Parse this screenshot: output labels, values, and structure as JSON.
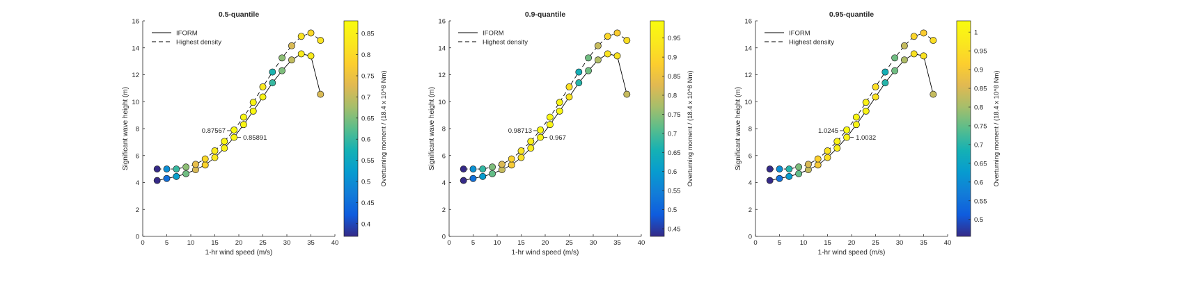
{
  "chart_data": [
    {
      "type": "scatter",
      "title": "0.5-quantile",
      "xlabel": "1-hr wind speed (m/s)",
      "ylabel": "Significant wave height (m)",
      "colorbar_label": "Overturning moment / (18.4 x 10^8 Nm)",
      "colorbar_ticks": [
        0.4,
        0.45,
        0.5,
        0.55,
        0.6,
        0.65,
        0.7,
        0.75,
        0.8,
        0.85
      ],
      "colorbar_range": [
        0.37,
        0.88
      ],
      "xlim": [
        0,
        40
      ],
      "ylim": [
        0,
        16
      ],
      "xticks": [
        0,
        5,
        10,
        15,
        20,
        25,
        30,
        35,
        40
      ],
      "yticks": [
        0,
        2,
        4,
        6,
        8,
        10,
        12,
        14,
        16
      ],
      "grid": false,
      "legend_position": "top-left",
      "series": [
        {
          "name": "IFORM",
          "style": "solid",
          "x": [
            3,
            5,
            7,
            9,
            11,
            13,
            15,
            17,
            19,
            21,
            23,
            25,
            27,
            29,
            31,
            33,
            35,
            37
          ],
          "y": [
            4.15,
            4.3,
            4.45,
            4.65,
            4.95,
            5.3,
            5.85,
            6.55,
            7.35,
            8.3,
            9.3,
            10.35,
            11.4,
            12.3,
            13.1,
            13.55,
            13.4,
            10.55
          ],
          "c": [
            0.37,
            0.45,
            0.53,
            0.64,
            0.72,
            0.79,
            0.83,
            0.855,
            0.8589,
            0.865,
            0.87,
            0.86,
            0.6,
            0.65,
            0.7,
            0.84,
            0.84,
            0.72
          ]
        },
        {
          "name": "Highest density",
          "style": "dashed",
          "x": [
            3,
            5,
            7,
            9,
            11,
            13,
            15,
            17,
            19,
            21,
            23,
            25,
            27,
            29,
            31,
            33,
            35,
            37
          ],
          "y": [
            5.0,
            5.0,
            5.0,
            5.15,
            5.35,
            5.75,
            6.35,
            7.05,
            7.9,
            8.85,
            9.95,
            11.1,
            12.2,
            13.25,
            14.15,
            14.85,
            15.1,
            14.55
          ],
          "c": [
            0.37,
            0.5,
            0.6,
            0.66,
            0.74,
            0.8,
            0.84,
            0.86,
            0.8757,
            0.87,
            0.86,
            0.83,
            0.58,
            0.66,
            0.72,
            0.82,
            0.8,
            0.82
          ]
        }
      ],
      "annotations": [
        {
          "text": "0.87567",
          "x": 19,
          "y": 7.9
        },
        {
          "text": "0.85891",
          "x": 19,
          "y": 7.35
        }
      ]
    },
    {
      "type": "scatter",
      "title": "0.9-quantile",
      "xlabel": "1-hr wind speed (m/s)",
      "ylabel": "Significant wave height (m)",
      "colorbar_label": "Overturning moment / (18.4 x 10^8 Nm)",
      "colorbar_ticks": [
        0.45,
        0.5,
        0.55,
        0.6,
        0.65,
        0.7,
        0.75,
        0.8,
        0.85,
        0.9,
        0.95
      ],
      "colorbar_range": [
        0.43,
        0.995
      ],
      "xlim": [
        0,
        40
      ],
      "ylim": [
        0,
        16
      ],
      "xticks": [
        0,
        5,
        10,
        15,
        20,
        25,
        30,
        35,
        40
      ],
      "yticks": [
        0,
        2,
        4,
        6,
        8,
        10,
        12,
        14,
        16
      ],
      "grid": false,
      "legend_position": "top-left",
      "series": [
        {
          "name": "IFORM",
          "style": "solid",
          "x": [
            3,
            5,
            7,
            9,
            11,
            13,
            15,
            17,
            19,
            21,
            23,
            25,
            27,
            29,
            31,
            33,
            35,
            37
          ],
          "y": [
            4.15,
            4.3,
            4.45,
            4.65,
            4.95,
            5.3,
            5.85,
            6.55,
            7.35,
            8.3,
            9.3,
            10.35,
            11.4,
            12.3,
            13.1,
            13.55,
            13.4,
            10.55
          ],
          "c": [
            0.43,
            0.52,
            0.6,
            0.72,
            0.8,
            0.87,
            0.92,
            0.95,
            0.967,
            0.975,
            0.98,
            0.93,
            0.67,
            0.73,
            0.78,
            0.93,
            0.93,
            0.8
          ]
        },
        {
          "name": "Highest density",
          "style": "dashed",
          "x": [
            3,
            5,
            7,
            9,
            11,
            13,
            15,
            17,
            19,
            21,
            23,
            25,
            27,
            29,
            31,
            33,
            35,
            37
          ],
          "y": [
            5.0,
            5.0,
            5.0,
            5.15,
            5.35,
            5.75,
            6.35,
            7.05,
            7.9,
            8.85,
            9.95,
            11.1,
            12.2,
            13.25,
            14.15,
            14.85,
            15.1,
            14.55
          ],
          "c": [
            0.43,
            0.58,
            0.68,
            0.74,
            0.82,
            0.89,
            0.93,
            0.96,
            0.9871,
            0.98,
            0.97,
            0.92,
            0.65,
            0.73,
            0.8,
            0.9,
            0.88,
            0.92
          ]
        }
      ],
      "annotations": [
        {
          "text": "0.98713",
          "x": 19,
          "y": 7.9
        },
        {
          "text": "0.967",
          "x": 19,
          "y": 7.35
        }
      ]
    },
    {
      "type": "scatter",
      "title": "0.95-quantile",
      "xlabel": "1-hr wind speed (m/s)",
      "ylabel": "Significant wave height (m)",
      "colorbar_label": "Overturning moment / (18.4 x 10^8 Nm)",
      "colorbar_ticks": [
        0.5,
        0.55,
        0.6,
        0.65,
        0.7,
        0.75,
        0.8,
        0.85,
        0.9,
        0.95,
        1
      ],
      "colorbar_range": [
        0.455,
        1.03
      ],
      "xlim": [
        0,
        40
      ],
      "ylim": [
        0,
        16
      ],
      "xticks": [
        0,
        5,
        10,
        15,
        20,
        25,
        30,
        35,
        40
      ],
      "yticks": [
        0,
        2,
        4,
        6,
        8,
        10,
        12,
        14,
        16
      ],
      "grid": false,
      "legend_position": "top-left",
      "series": [
        {
          "name": "IFORM",
          "style": "solid",
          "x": [
            3,
            5,
            7,
            9,
            11,
            13,
            15,
            17,
            19,
            21,
            23,
            25,
            27,
            29,
            31,
            33,
            35,
            37
          ],
          "y": [
            4.15,
            4.3,
            4.45,
            4.65,
            4.95,
            5.3,
            5.85,
            6.55,
            7.35,
            8.3,
            9.3,
            10.35,
            11.4,
            12.3,
            13.1,
            13.55,
            13.4,
            10.55
          ],
          "c": [
            0.455,
            0.55,
            0.63,
            0.75,
            0.83,
            0.9,
            0.95,
            0.99,
            1.0032,
            1.01,
            1.01,
            0.96,
            0.7,
            0.76,
            0.81,
            0.96,
            0.96,
            0.83
          ]
        },
        {
          "name": "Highest density",
          "style": "dashed",
          "x": [
            3,
            5,
            7,
            9,
            11,
            13,
            15,
            17,
            19,
            21,
            23,
            25,
            27,
            29,
            31,
            33,
            35,
            37
          ],
          "y": [
            5.0,
            5.0,
            5.0,
            5.15,
            5.35,
            5.75,
            6.35,
            7.05,
            7.9,
            8.85,
            9.95,
            11.1,
            12.2,
            13.25,
            14.15,
            14.85,
            15.1,
            14.55
          ],
          "c": [
            0.455,
            0.6,
            0.7,
            0.77,
            0.85,
            0.92,
            0.96,
            1.0,
            1.0245,
            1.015,
            1.0,
            0.95,
            0.68,
            0.76,
            0.83,
            0.93,
            0.91,
            0.95
          ]
        }
      ],
      "annotations": [
        {
          "text": "1.0245",
          "x": 19,
          "y": 7.9
        },
        {
          "text": "1.0032",
          "x": 19,
          "y": 7.35
        }
      ]
    }
  ]
}
